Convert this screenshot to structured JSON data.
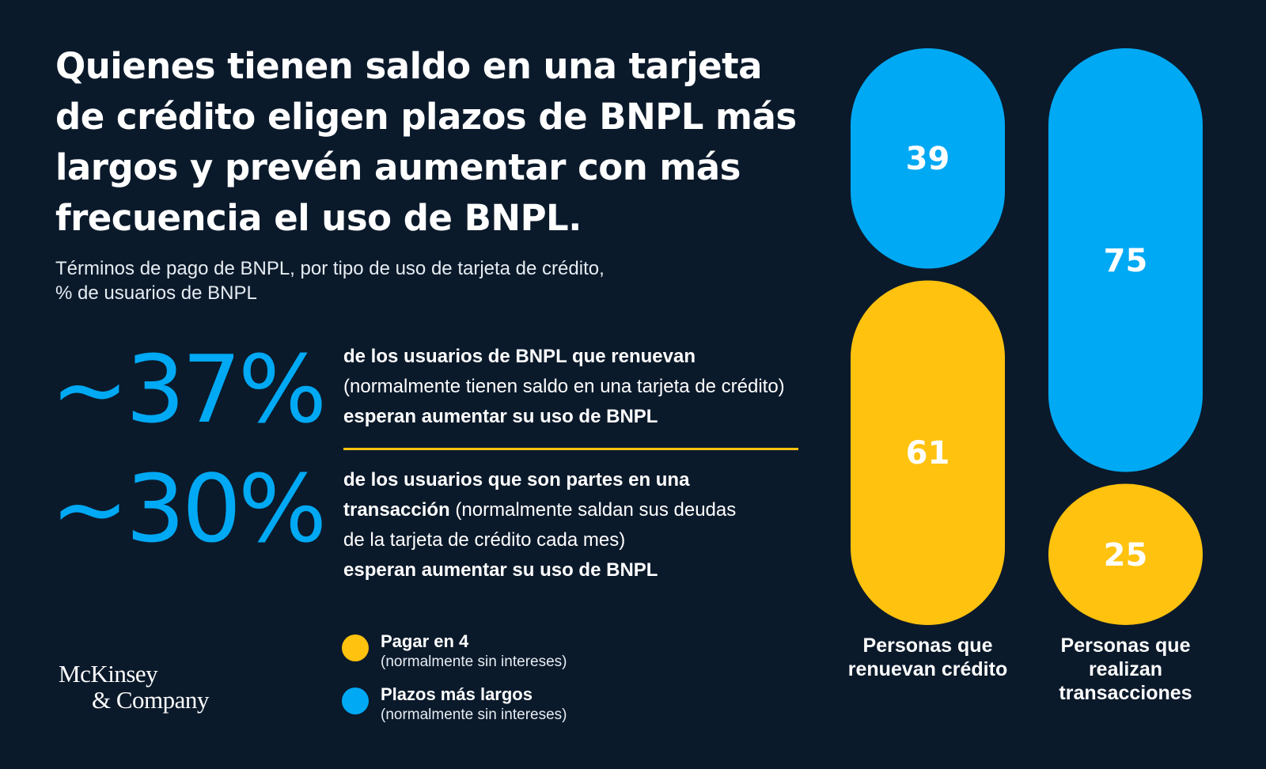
{
  "title": "Quienes tienen saldo en una tarjeta de crédito eligen plazos de BNPL más largos y prevén aumentar con más frecuencia el uso de BNPL.",
  "subtitle_line1": "Términos de pago de BNPL, por tipo de uso de tarjeta de crédito,",
  "subtitle_line2": "% de usuarios de BNPL",
  "stats": [
    {
      "number": "~37%",
      "bold1": "de los usuarios de BNPL que renuevan",
      "normal1": "(normalmente tienen saldo en una tarjeta de crédito)",
      "bold2": "esperan aumentar su uso de BNPL"
    },
    {
      "number": "~30%",
      "bold1": "de los usuarios que son partes en una",
      "bold1b": "transacción",
      "normal1": " (normalmente saldan sus deudas",
      "normal2": "de la tarjeta de crédito cada mes)",
      "bold2": "esperan aumentar su uso de BNPL"
    }
  ],
  "brand": {
    "line1": "McKinsey",
    "line2": "& Company"
  },
  "colors": {
    "pay_in_4": "#ffc20e",
    "longer_terms": "#00a9f4",
    "background": "#0b1a2b"
  },
  "chart_data": {
    "type": "bar",
    "stacked": true,
    "categories": [
      "Personas que renuevan crédito",
      "Personas que realizan transacciones"
    ],
    "category_label_lines": [
      [
        "Personas que",
        "renuevan crédito"
      ],
      [
        "Personas que",
        "realizan",
        "transacciones"
      ]
    ],
    "series": [
      {
        "name": "Pagar en 4",
        "note": "(normalmente sin intereses)",
        "color": "#ffc20e",
        "values": [
          61,
          25
        ]
      },
      {
        "name": "Plazos más largos",
        "note": "(normalmente sin intereses)",
        "color": "#00a9f4",
        "values": [
          39,
          75
        ]
      }
    ],
    "ylim": [
      0,
      100
    ],
    "legend_position": "bottom-left"
  }
}
